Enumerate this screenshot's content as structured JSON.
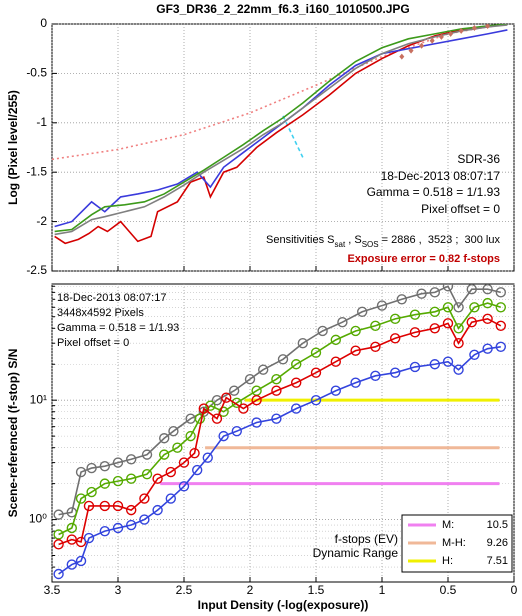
{
  "chart_data": [
    {
      "type": "line",
      "title": "GF3_DR36_2_22mm_f6.3_i160_1010500.JPG",
      "ylabel": "Log (Pixel level/255)",
      "xlim": [
        3.5,
        0
      ],
      "xticks": [
        3.5,
        3,
        2.5,
        2,
        1.5,
        1,
        0.5,
        0
      ],
      "xtick_labels": false,
      "ylim": [
        -2.5,
        0
      ],
      "yticks": [
        0,
        -0.5,
        -1,
        -1.5,
        -2,
        -2.5
      ],
      "grid": true,
      "annotations": [
        "SDR-36",
        "18-Dec-2013 08:07:17",
        "Gamma = 0.518 = 1/1.93",
        "Pixel offset = 0"
      ],
      "sensitivity_text": [
        "Sensitivities S",
        "sat",
        " , S",
        "SOS",
        " = 2886 ,  3523 ;  300 lux"
      ],
      "exposure_error": "Exposure error = 0.82 f-stops",
      "series": [
        {
          "color": "#f08080",
          "line_style": "dotted",
          "x": [
            3.5,
            3,
            2.5,
            2,
            1.5,
            1,
            0.5,
            0
          ],
          "values": [
            -1.37,
            -1.27,
            -1.12,
            -0.9,
            -0.62,
            -0.33,
            -0.1,
            0.02
          ]
        },
        {
          "color": "#40d0f0",
          "line_style": "dashed",
          "x": [
            1.75,
            1.6
          ],
          "values": [
            -0.93,
            -1.35
          ]
        },
        {
          "color": "#d40000",
          "x": [
            3.48,
            3.4,
            3.3,
            3.22,
            3.15,
            3.08,
            2.98,
            2.85,
            2.75,
            2.7,
            2.55,
            2.45,
            2.35,
            2.3,
            2.2,
            2.1,
            1.95,
            1.8,
            1.6,
            1.4,
            1.2,
            1.0,
            0.8,
            0.6,
            0.4,
            0.2,
            0.05
          ],
          "values": [
            -2.15,
            -2.22,
            -2.18,
            -2.12,
            -2.05,
            -2.1,
            -2.0,
            -2.2,
            -2.15,
            -1.9,
            -1.8,
            -1.6,
            -1.55,
            -1.75,
            -1.5,
            -1.45,
            -1.25,
            -1.1,
            -0.92,
            -0.72,
            -0.5,
            -0.35,
            -0.22,
            -0.12,
            -0.06,
            -0.03,
            0
          ]
        },
        {
          "color": "#3a3adc",
          "x": [
            3.48,
            3.35,
            3.2,
            3.1,
            2.98,
            2.85,
            2.7,
            2.55,
            2.4,
            2.3,
            2.2,
            2.05,
            1.9,
            1.75,
            1.6,
            1.4,
            1.2,
            1.0,
            0.8,
            0.6,
            0.4,
            0.2,
            0.05
          ],
          "values": [
            -2.05,
            -2.0,
            -1.8,
            -1.9,
            -1.75,
            -1.72,
            -1.68,
            -1.62,
            -1.5,
            -1.65,
            -1.45,
            -1.3,
            -1.15,
            -1.0,
            -0.85,
            -0.62,
            -0.42,
            -0.3,
            -0.25,
            -0.2,
            -0.15,
            -0.1,
            -0.06
          ]
        },
        {
          "color": "#3c9a1a",
          "x": [
            3.48,
            3.35,
            3.2,
            3.1,
            2.95,
            2.8,
            2.65,
            2.5,
            2.35,
            2.2,
            2.05,
            1.9,
            1.75,
            1.6,
            1.4,
            1.2,
            1.0,
            0.8,
            0.6,
            0.4,
            0.2,
            0.05
          ],
          "values": [
            -2.1,
            -2.08,
            -1.93,
            -1.85,
            -1.83,
            -1.8,
            -1.72,
            -1.6,
            -1.48,
            -1.35,
            -1.22,
            -1.08,
            -0.95,
            -0.8,
            -0.58,
            -0.38,
            -0.24,
            -0.15,
            -0.1,
            -0.05,
            -0.02,
            0
          ]
        },
        {
          "color": "#808080",
          "x": [
            3.48,
            3.35,
            3.2,
            3.1,
            2.95,
            2.8,
            2.65,
            2.5,
            2.35,
            2.2,
            2.05,
            1.9,
            1.75,
            1.6,
            1.4,
            1.2,
            1.0,
            0.8,
            0.6,
            0.4,
            0.2,
            0.05
          ],
          "values": [
            -2.13,
            -2.1,
            -1.98,
            -1.95,
            -1.9,
            -1.85,
            -1.75,
            -1.63,
            -1.5,
            -1.38,
            -1.26,
            -1.12,
            -1.0,
            -0.85,
            -0.65,
            -0.45,
            -0.3,
            -0.2,
            -0.13,
            -0.07,
            -0.03,
            -0.01
          ]
        },
        {
          "color": "#c87060",
          "marker": "diamond",
          "line": false,
          "x": [
            0.85,
            0.78,
            0.7,
            0.62,
            0.55,
            0.48,
            0.4,
            0.3,
            0.2
          ],
          "values": [
            -0.33,
            -0.27,
            -0.22,
            -0.17,
            -0.13,
            -0.1,
            -0.07,
            -0.04,
            -0.02
          ]
        }
      ]
    },
    {
      "type": "line",
      "ylabel": "Scene-referenced (f-stop) S/N",
      "xlabel": "Input Density (-log(exposure))",
      "xlim": [
        3.5,
        0
      ],
      "xticks": [
        3.5,
        3,
        2.5,
        2,
        1.5,
        1,
        0.5,
        0
      ],
      "ylim": [
        0.3,
        94
      ],
      "log_y": true,
      "yticks": [
        {
          "value": 1,
          "label": "10⁰"
        },
        {
          "value": 10,
          "label": "10¹"
        }
      ],
      "yminor": [
        0.4,
        0.5,
        0.6,
        0.7,
        0.8,
        0.9,
        2,
        3,
        4,
        5,
        6,
        7,
        8,
        9,
        20,
        30,
        40,
        50,
        60,
        70,
        80,
        90
      ],
      "grid": true,
      "annotations": [
        "18-Dec-2013 08:07:17",
        "3448x4592 Pixels",
        "Gamma = 0.518 = 1/1.93",
        "Pixel offset = 0"
      ],
      "legend_title": [
        "f-stops (EV)",
        "Dynamic Range"
      ],
      "dynamic_range": [
        {
          "name": "M:",
          "value": 10.5,
          "color": "#f080f0",
          "y": 2,
          "x": [
            2.68,
            0.11
          ]
        },
        {
          "name": "M-H:",
          "value": 9.26,
          "color": "#f0b898",
          "y": 4,
          "x": [
            2.34,
            0.11
          ]
        },
        {
          "name": "H:",
          "value": 7.51,
          "color": "#f0f000",
          "y": 10,
          "x": [
            2.04,
            0.11
          ]
        }
      ],
      "series": [
        {
          "color": "#707070",
          "marker": "circle",
          "x": [
            3.45,
            3.35,
            3.28,
            3.2,
            3.1,
            3.0,
            2.9,
            2.78,
            2.65,
            2.58,
            2.45,
            2.35,
            2.25,
            2.12,
            2.0,
            1.9,
            1.75,
            1.6,
            1.45,
            1.3,
            1.15,
            1.0,
            0.85,
            0.7,
            0.6,
            0.5,
            0.42,
            0.32,
            0.2,
            0.1
          ],
          "values": [
            1.1,
            1.15,
            2.5,
            2.7,
            2.8,
            3.0,
            3.2,
            3.5,
            4.8,
            5.5,
            7,
            8,
            10,
            12,
            15,
            18,
            22,
            30,
            38,
            45,
            55,
            62,
            70,
            78,
            80,
            90,
            60,
            85,
            85,
            80
          ]
        },
        {
          "color": "#55aa00",
          "marker": "circle",
          "x": [
            3.45,
            3.35,
            3.28,
            3.2,
            3.1,
            3.0,
            2.9,
            2.78,
            2.65,
            2.55,
            2.45,
            2.38,
            2.3,
            2.2,
            2.1,
            1.95,
            1.8,
            1.65,
            1.5,
            1.35,
            1.2,
            1.05,
            0.9,
            0.75,
            0.6,
            0.5,
            0.42,
            0.3,
            0.2,
            0.1
          ],
          "values": [
            0.75,
            0.85,
            1.5,
            1.7,
            2.0,
            2.1,
            2.2,
            2.4,
            3.5,
            4,
            5,
            7,
            9,
            8,
            9.5,
            12,
            15,
            20,
            25,
            32,
            38,
            42,
            48,
            52,
            55,
            60,
            40,
            60,
            65,
            60
          ]
        },
        {
          "color": "#dd0000",
          "marker": "circle",
          "x": [
            3.45,
            3.35,
            3.28,
            3.22,
            3.1,
            3.0,
            2.9,
            2.8,
            2.7,
            2.6,
            2.5,
            2.42,
            2.35,
            2.25,
            2.18,
            2.05,
            1.95,
            1.8,
            1.65,
            1.5,
            1.35,
            1.2,
            1.05,
            0.9,
            0.75,
            0.6,
            0.5,
            0.42,
            0.32,
            0.2,
            0.1
          ],
          "values": [
            0.62,
            0.68,
            0.65,
            1.3,
            1.3,
            1.3,
            1.2,
            1.5,
            2.2,
            2.5,
            3.0,
            3.6,
            8.5,
            7,
            10.5,
            8.5,
            10,
            12,
            14,
            17,
            21,
            26,
            28,
            33,
            37,
            40,
            44,
            30,
            45,
            48,
            42
          ]
        },
        {
          "color": "#3344dd",
          "marker": "circle",
          "x": [
            3.45,
            3.35,
            3.28,
            3.22,
            3.1,
            3.0,
            2.9,
            2.8,
            2.7,
            2.6,
            2.5,
            2.4,
            2.32,
            2.2,
            2.1,
            1.95,
            1.8,
            1.65,
            1.5,
            1.35,
            1.2,
            1.05,
            0.9,
            0.75,
            0.6,
            0.5,
            0.42,
            0.3,
            0.2,
            0.1
          ],
          "values": [
            0.35,
            0.42,
            0.45,
            0.7,
            0.8,
            0.85,
            0.9,
            1.0,
            1.2,
            1.5,
            1.9,
            2.6,
            3.3,
            5,
            5.5,
            6.5,
            7,
            8.5,
            10,
            12,
            14,
            16,
            17,
            19,
            20,
            21,
            18,
            24,
            27,
            28
          ]
        }
      ]
    }
  ]
}
